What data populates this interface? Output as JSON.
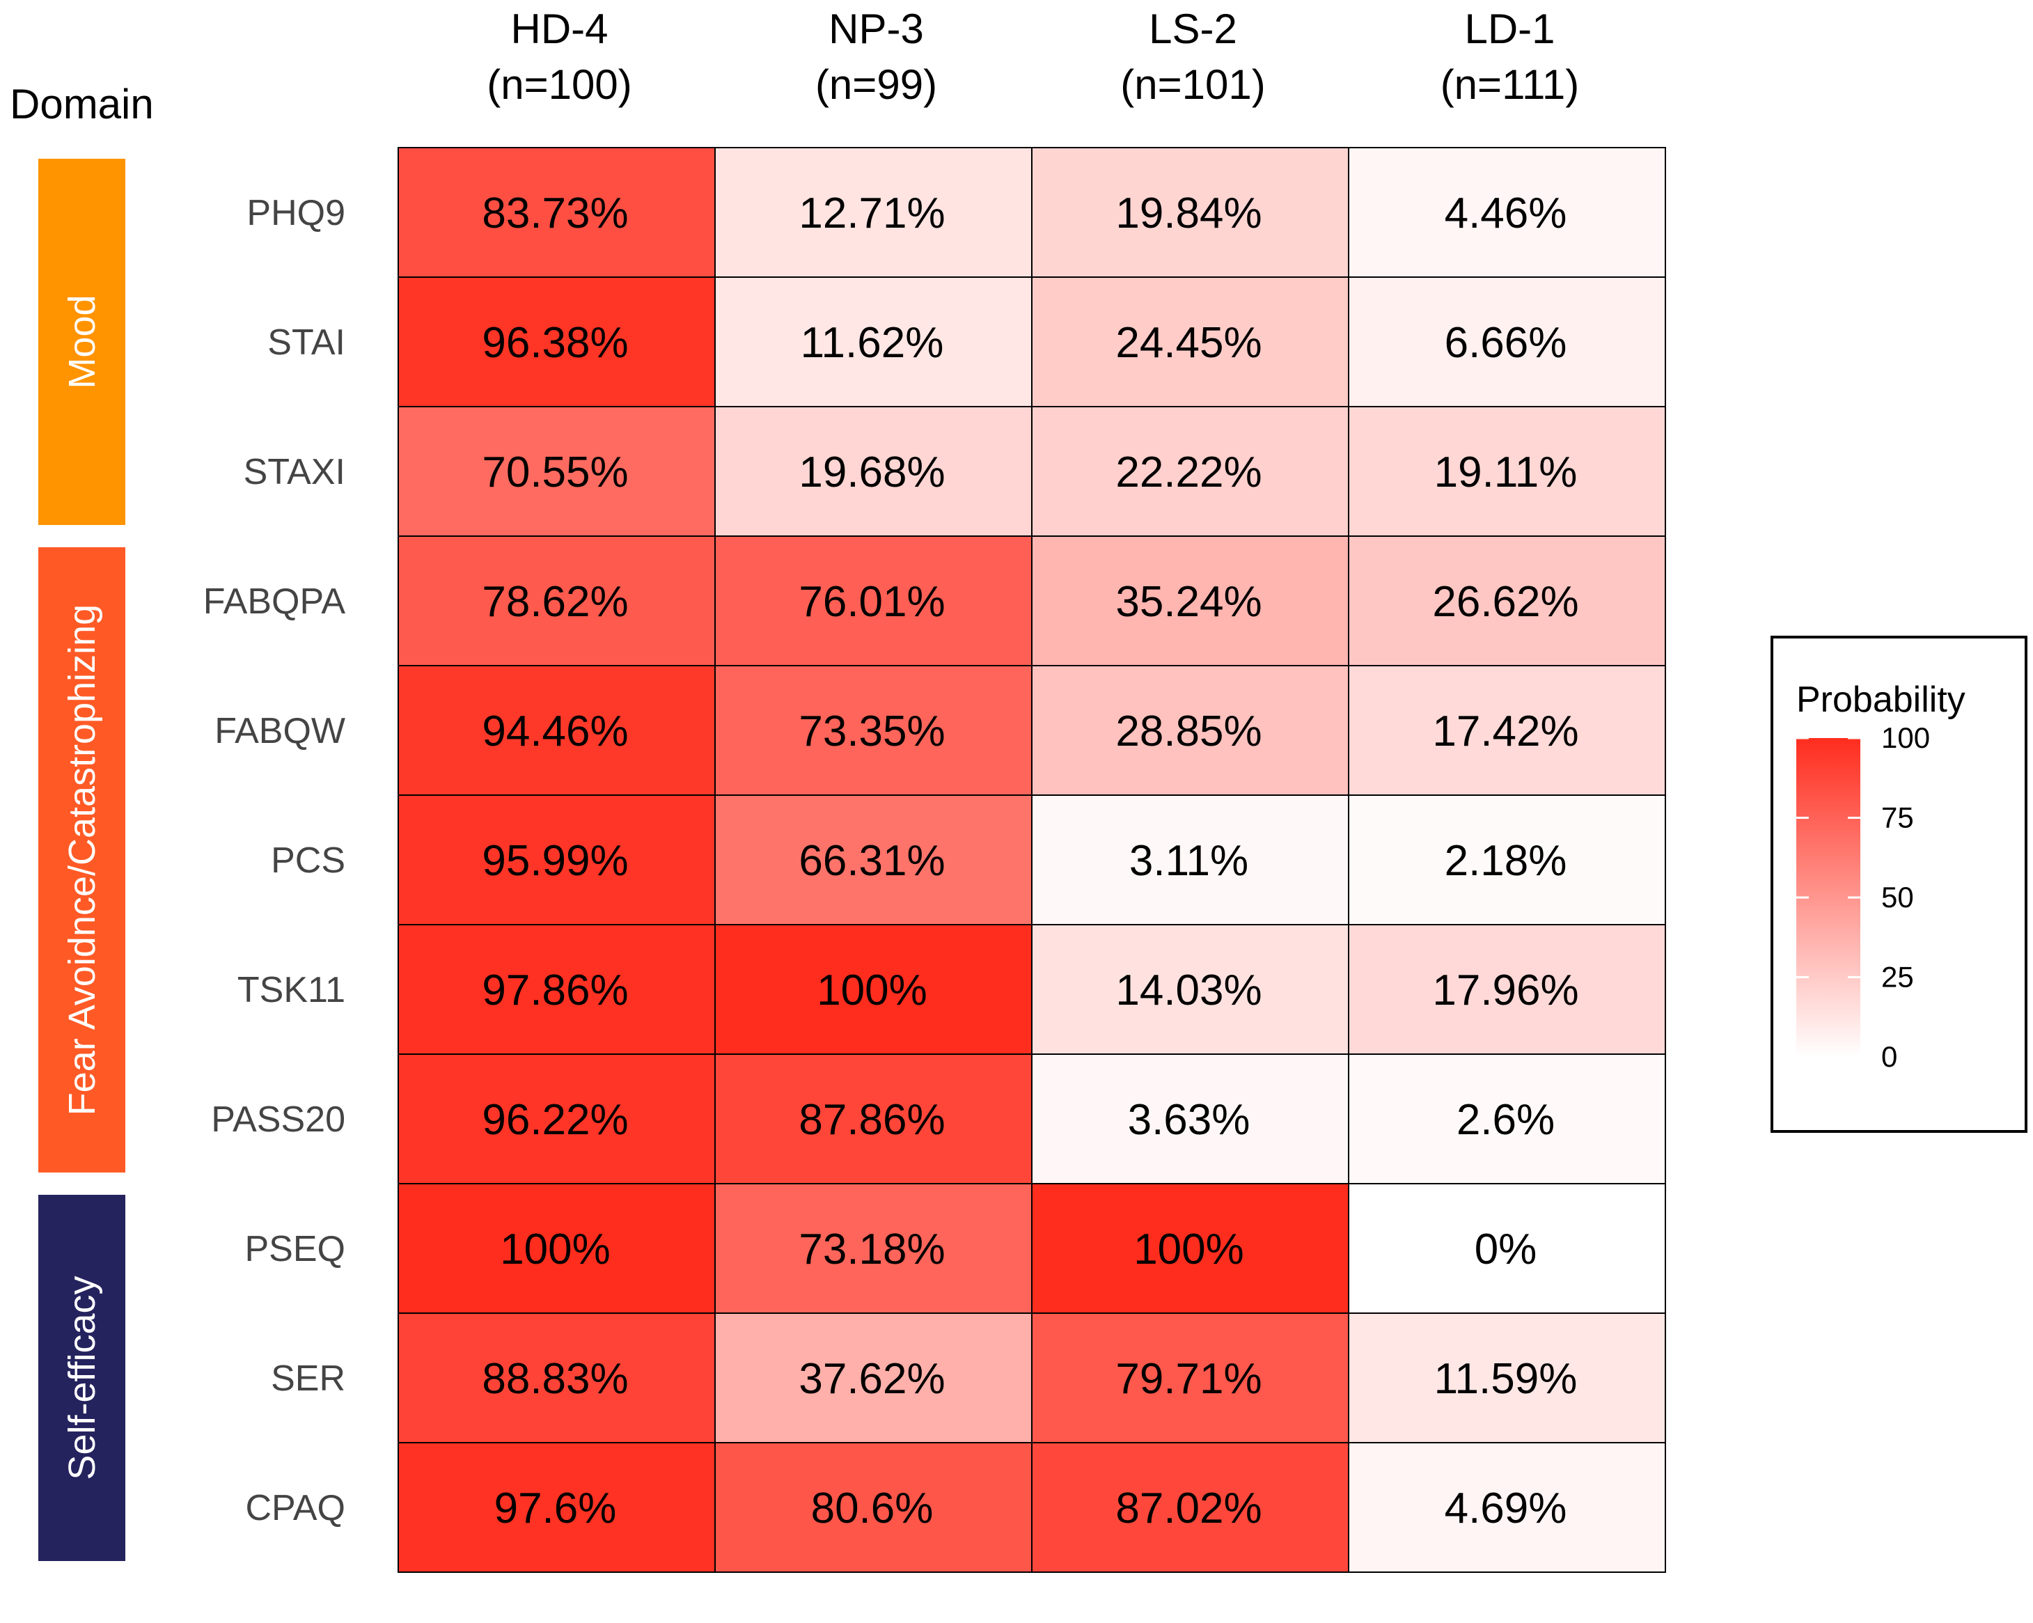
{
  "chart_data": {
    "type": "heatmap",
    "title": "",
    "domain_header": "Domain",
    "columns": [
      {
        "name": "HD-4",
        "n": "(n=100)"
      },
      {
        "name": "NP-3",
        "n": "(n=99)"
      },
      {
        "name": "LS-2",
        "n": "(n=101)"
      },
      {
        "name": "LD-1",
        "n": "(n=111)"
      }
    ],
    "rows": [
      "PHQ9",
      "STAI",
      "STAXI",
      "FABQPA",
      "FABQW",
      "PCS",
      "TSK11",
      "PASS20",
      "PSEQ",
      "SER",
      "CPAQ"
    ],
    "values": [
      [
        83.73,
        12.71,
        19.84,
        4.46
      ],
      [
        96.38,
        11.62,
        24.45,
        6.66
      ],
      [
        70.55,
        19.68,
        22.22,
        19.11
      ],
      [
        78.62,
        76.01,
        35.24,
        26.62
      ],
      [
        94.46,
        73.35,
        28.85,
        17.42
      ],
      [
        95.99,
        66.31,
        3.11,
        2.18
      ],
      [
        97.86,
        100,
        14.03,
        17.96
      ],
      [
        96.22,
        87.86,
        3.63,
        2.6
      ],
      [
        100,
        73.18,
        100,
        0
      ],
      [
        88.83,
        37.62,
        79.71,
        11.59
      ],
      [
        97.6,
        80.6,
        87.02,
        4.69
      ]
    ],
    "labels": [
      [
        "83.73%",
        "12.71%",
        "19.84%",
        "4.46%"
      ],
      [
        "96.38%",
        "11.62%",
        "24.45%",
        "6.66%"
      ],
      [
        "70.55%",
        "19.68%",
        "22.22%",
        "19.11%"
      ],
      [
        "78.62%",
        "76.01%",
        "35.24%",
        "26.62%"
      ],
      [
        "94.46%",
        "73.35%",
        "28.85%",
        "17.42%"
      ],
      [
        "95.99%",
        "66.31%",
        "3.11%",
        "2.18%"
      ],
      [
        "97.86%",
        "100%",
        "14.03%",
        "17.96%"
      ],
      [
        "96.22%",
        "87.86%",
        "3.63%",
        "2.6%"
      ],
      [
        "100%",
        "73.18%",
        "100%",
        "0%"
      ],
      [
        "88.83%",
        "37.62%",
        "79.71%",
        "11.59%"
      ],
      [
        "97.6%",
        "80.6%",
        "87.02%",
        "4.69%"
      ]
    ],
    "domains": [
      {
        "name": "Mood",
        "rows": 3,
        "color": "#FF9300"
      },
      {
        "name": "Fear Avoidnce/Catastrophizing",
        "rows": 5,
        "color": "#FF5A26"
      },
      {
        "name": "Self-efficacy",
        "rows": 3,
        "color": "#25235E"
      }
    ],
    "legend": {
      "title": "Probability",
      "ticks": [
        100,
        75,
        50,
        25,
        0
      ],
      "range": [
        0,
        100
      ]
    },
    "colors": {
      "low": "#FFFFFF",
      "high": "#FF2D1E",
      "grid": "#000000"
    }
  }
}
